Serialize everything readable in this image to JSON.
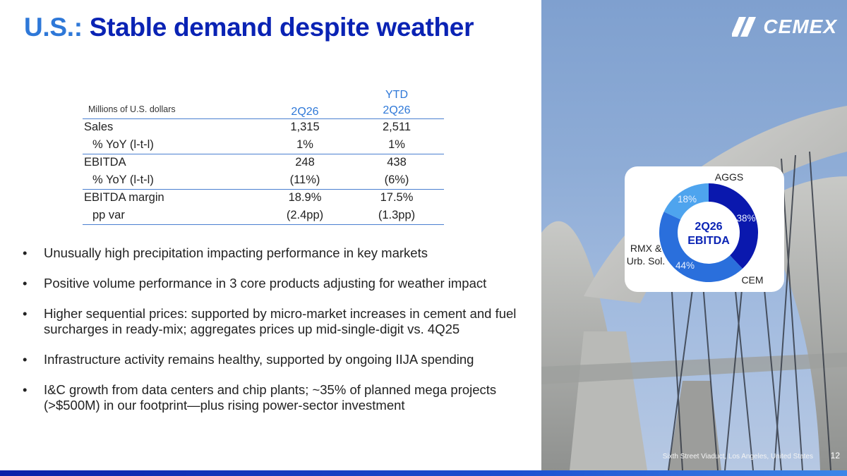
{
  "title": {
    "prefix": "U.S.:",
    "main": "Stable demand despite weather"
  },
  "logo": {
    "text": "CEMEX",
    "icon": "cemex-slash-logo-icon"
  },
  "table": {
    "units": "Millions of U.S. dollars",
    "columns": [
      {
        "line1": "",
        "line2": "2Q26"
      },
      {
        "line1": "YTD",
        "line2": "2Q26"
      }
    ],
    "rows": [
      {
        "label": "Sales",
        "v1": "1,315",
        "v2": "2,511",
        "sub": false
      },
      {
        "label": "% YoY (l-t-l)",
        "v1": "1%",
        "v2": "1%",
        "sub": true
      },
      {
        "label": "EBITDA",
        "v1": "248",
        "v2": "438",
        "sub": false
      },
      {
        "label": "% YoY (l-t-l)",
        "v1": "(11%)",
        "v2": "(6%)",
        "sub": true
      },
      {
        "label": "EBITDA margin",
        "v1": "18.9%",
        "v2": "17.5%",
        "sub": false
      },
      {
        "label": "pp var",
        "v1": "(2.4pp)",
        "v2": "(1.3pp)",
        "sub": true
      }
    ]
  },
  "bullets": [
    "Unusually high precipitation impacting performance in key markets",
    "Positive volume performance in 3 core products adjusting for weather impact",
    "Higher sequential prices: supported by micro-market increases in cement and fuel surcharges in ready-mix; aggregates prices up mid-single-digit vs. 4Q25",
    "Infrastructure activity remains healthy, supported by ongoing IIJA spending",
    "I&C growth from data centers and chip plants; ~35% of planned mega projects (>$500M) in our footprint—plus rising power-sector investment"
  ],
  "bullet_marker": "•",
  "chart_data": {
    "type": "pie",
    "title": "2Q26 EBITDA",
    "center_label": [
      "2Q26",
      "EBITDA"
    ],
    "slices": [
      {
        "name": "AGGS",
        "label_lines": [
          "AGGS"
        ],
        "value": 38,
        "display": "38%",
        "color": "#0a18ae"
      },
      {
        "name": "CEM",
        "label_lines": [
          "CEM"
        ],
        "value": 44,
        "display": "44%",
        "color": "#2a6fdc"
      },
      {
        "name": "RMX & Urb. Sol.",
        "label_lines": [
          "RMX &",
          "Urb. Sol."
        ],
        "value": 18,
        "display": "18%",
        "color": "#4ea4ee"
      }
    ]
  },
  "photo_caption": "Sixth Street Viaduct, Los Angeles, United States",
  "page_number": "12",
  "colors": {
    "title_prefix": "#2e78d8",
    "title_main": "#0a23b4",
    "rule": "#4a7fd0"
  }
}
